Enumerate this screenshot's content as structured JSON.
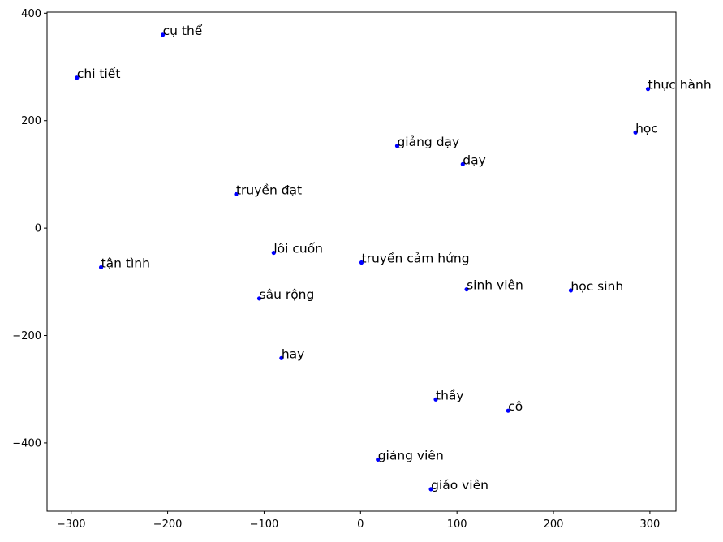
{
  "chart_data": {
    "type": "scatter",
    "title": "",
    "xlabel": "",
    "ylabel": "",
    "xlim": [
      -325,
      327
    ],
    "ylim": [
      -527,
      402
    ],
    "xticks": [
      -300,
      -200,
      -100,
      0,
      100,
      200,
      300
    ],
    "yticks": [
      -400,
      -200,
      0,
      200,
      400
    ],
    "grid": false,
    "marker_color": "#0000ff",
    "points": [
      {
        "label": "cụ thể",
        "x": -205,
        "y": 360
      },
      {
        "label": "chi tiết",
        "x": -294,
        "y": 280
      },
      {
        "label": "thực hành",
        "x": 298,
        "y": 259
      },
      {
        "label": "học",
        "x": 285,
        "y": 178
      },
      {
        "label": "giảng dạy",
        "x": 38,
        "y": 153
      },
      {
        "label": "dạy",
        "x": 106,
        "y": 119
      },
      {
        "label": "truyền đạt",
        "x": -129,
        "y": 63
      },
      {
        "label": "lôi cuốn",
        "x": -90,
        "y": -46
      },
      {
        "label": "tận tình",
        "x": -269,
        "y": -73
      },
      {
        "label": "truyền cảm hứng",
        "x": 1,
        "y": -64
      },
      {
        "label": "sinh viên",
        "x": 110,
        "y": -114
      },
      {
        "label": "học sinh",
        "x": 218,
        "y": -116
      },
      {
        "label": "sâu rộng",
        "x": -105,
        "y": -131
      },
      {
        "label": "hay",
        "x": -82,
        "y": -242
      },
      {
        "label": "thầy",
        "x": 78,
        "y": -319
      },
      {
        "label": "cô",
        "x": 153,
        "y": -340
      },
      {
        "label": "giảng viên",
        "x": 18,
        "y": -431
      },
      {
        "label": "giáo viên",
        "x": 73,
        "y": -486
      }
    ]
  }
}
